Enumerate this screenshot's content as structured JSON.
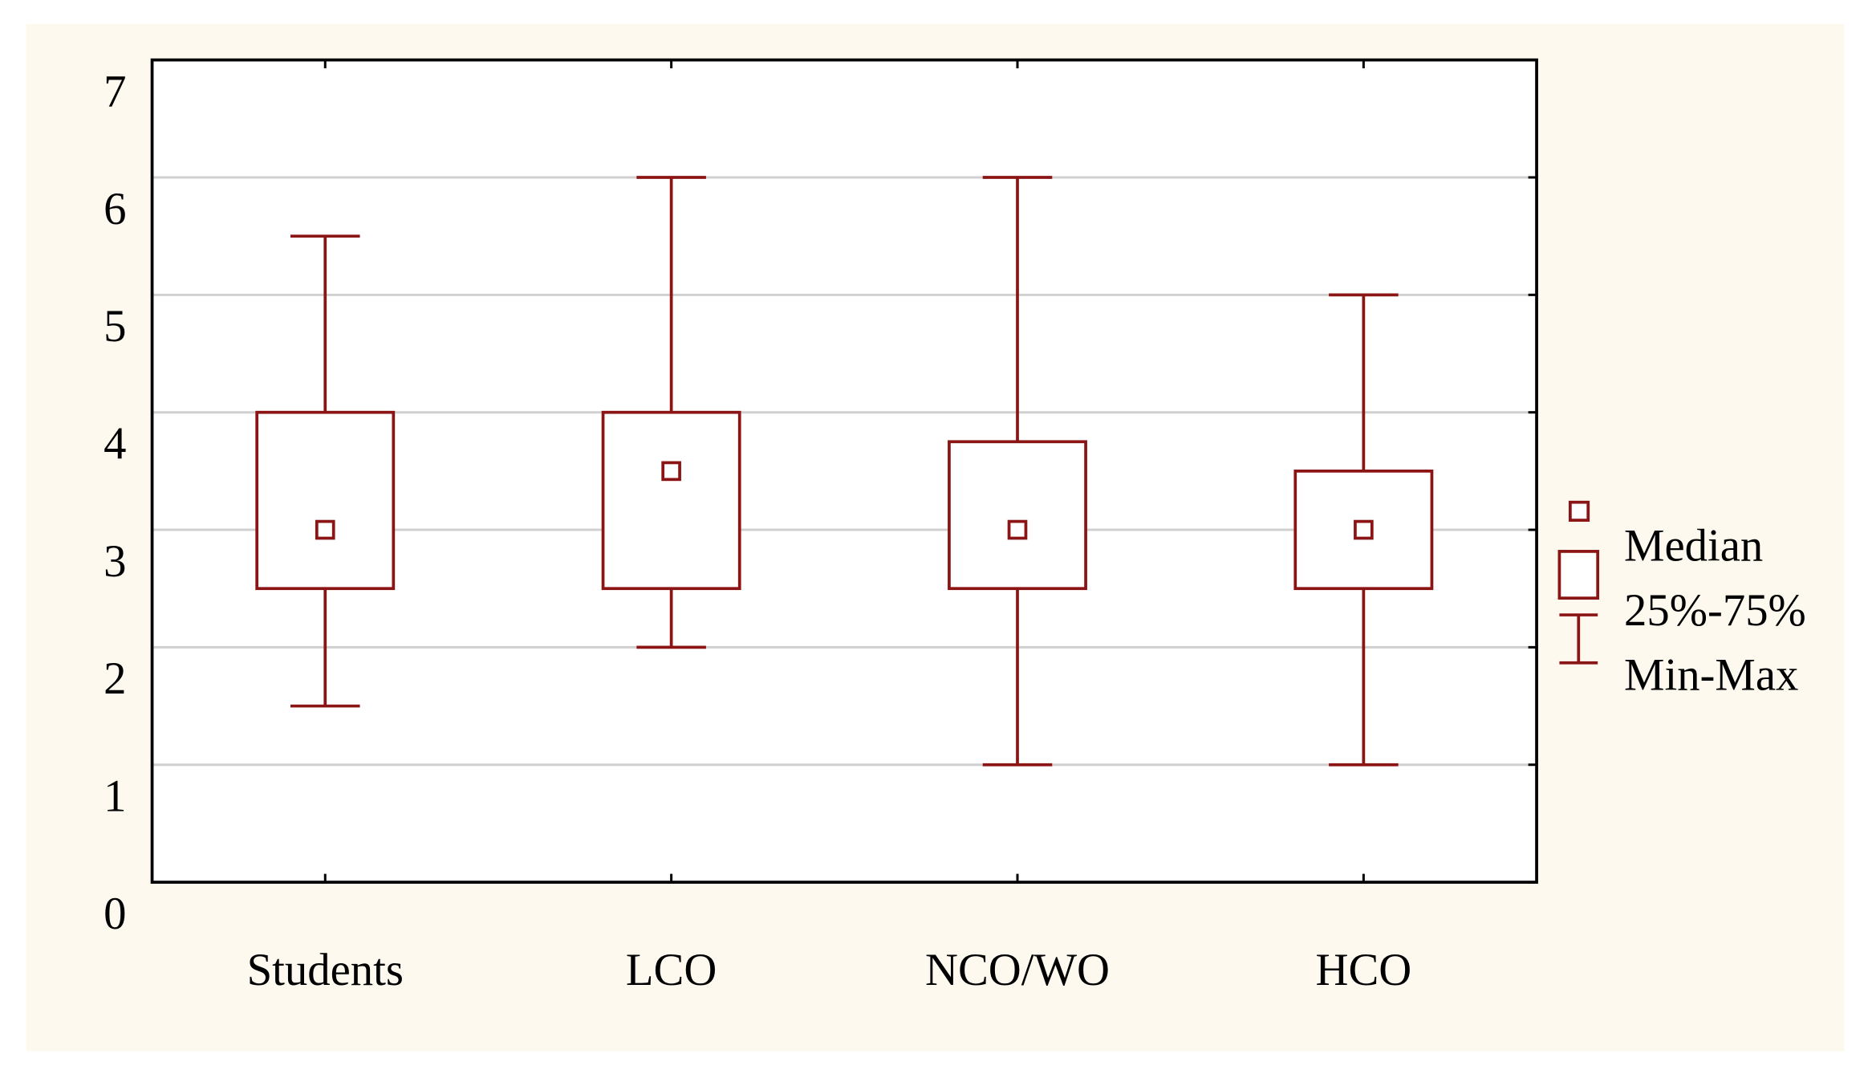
{
  "chart_data": {
    "type": "box",
    "categories": [
      "Students",
      "LCO",
      "NCO/WO",
      "HCO"
    ],
    "stats": {
      "min": [
        1.5,
        2,
        1,
        1
      ],
      "q1": [
        2.5,
        2.5,
        2.5,
        2.5
      ],
      "median": [
        3,
        3.5,
        3,
        3
      ],
      "q3": [
        4,
        4,
        3.75,
        3.5
      ],
      "max": [
        5.5,
        6,
        6,
        5
      ]
    },
    "color": "#8b1414",
    "legend": [
      "Median",
      "25%-75%",
      "Min-Max"
    ],
    "ylim": [
      0,
      7
    ],
    "yticks": [
      0,
      1,
      2,
      3,
      4,
      5,
      6,
      7
    ],
    "grid": true
  }
}
